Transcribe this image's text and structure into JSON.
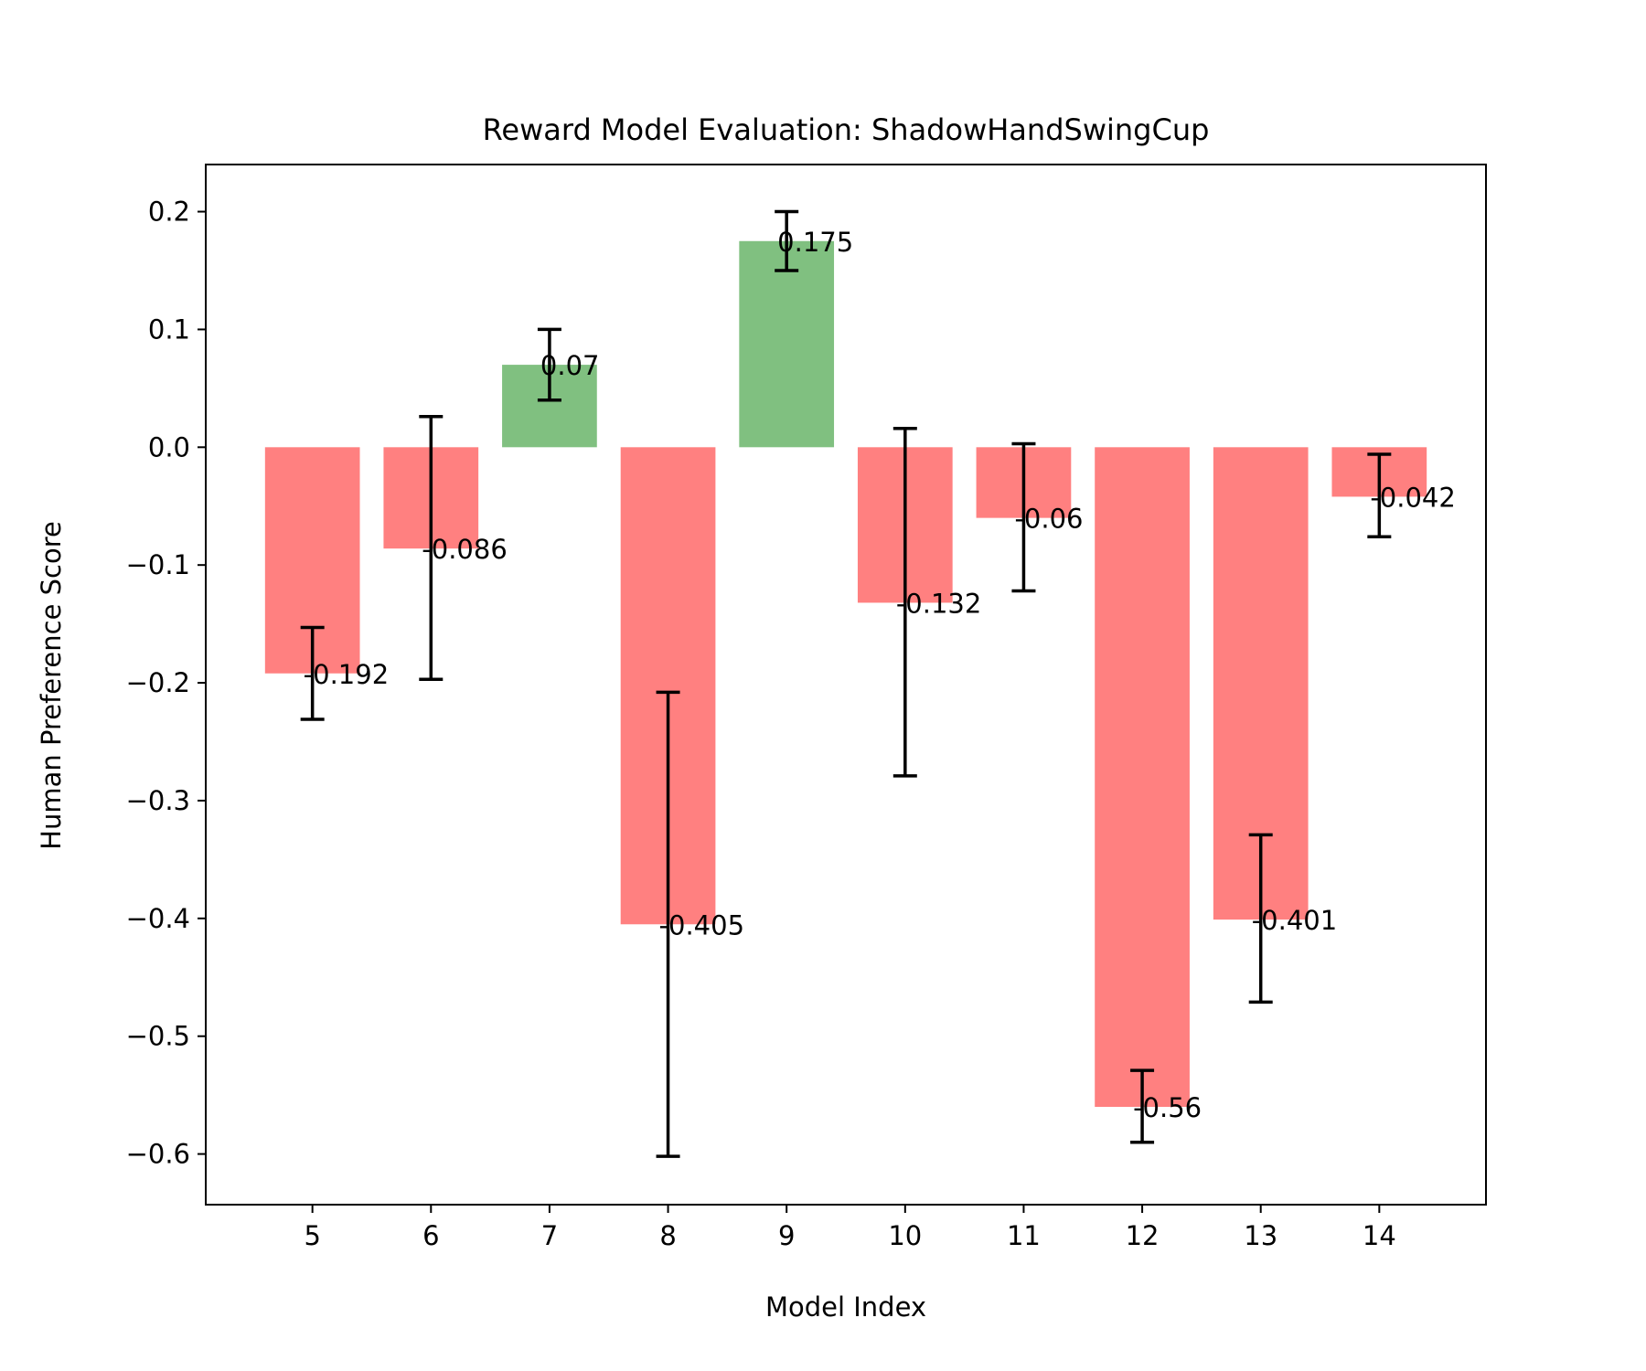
{
  "chart_data": {
    "type": "bar",
    "title": "Reward Model Evaluation: ShadowHandSwingCup",
    "xlabel": "Model Index",
    "ylabel": "Human Preference Score",
    "categories": [
      "5",
      "6",
      "7",
      "8",
      "9",
      "10",
      "11",
      "12",
      "13",
      "14"
    ],
    "values": [
      -0.192,
      -0.086,
      0.07,
      -0.405,
      0.175,
      -0.132,
      -0.06,
      -0.56,
      -0.401,
      -0.042
    ],
    "value_labels": [
      "-0.192",
      "-0.086",
      "0.07",
      "-0.405",
      "0.175",
      "-0.132",
      "-0.06",
      "-0.56",
      "-0.401",
      "-0.042"
    ],
    "error_bars": [
      {
        "low": -0.231,
        "high": -0.153
      },
      {
        "low": -0.197,
        "high": 0.026
      },
      {
        "low": 0.04,
        "high": 0.1
      },
      {
        "low": -0.602,
        "high": -0.208
      },
      {
        "low": 0.15,
        "high": 0.2
      },
      {
        "low": -0.279,
        "high": 0.016
      },
      {
        "low": -0.122,
        "high": 0.003
      },
      {
        "low": -0.59,
        "high": -0.529
      },
      {
        "low": -0.471,
        "high": -0.329
      },
      {
        "low": -0.076,
        "high": -0.006
      }
    ],
    "yticks": [
      "−0.6",
      "−0.5",
      "−0.4",
      "−0.3",
      "−0.2",
      "−0.1",
      "0.0",
      "0.1",
      "0.2"
    ],
    "ytick_values": [
      -0.6,
      -0.5,
      -0.4,
      -0.3,
      -0.2,
      -0.1,
      0.0,
      0.1,
      0.2
    ],
    "ylim": [
      -0.643,
      0.24
    ],
    "xlim": [
      4.1,
      14.9
    ],
    "grid": false,
    "legend": "none",
    "colors": {
      "positive": "#80c080",
      "negative": "#ff8080",
      "error_bar": "#000000",
      "axes": "#000000"
    }
  }
}
